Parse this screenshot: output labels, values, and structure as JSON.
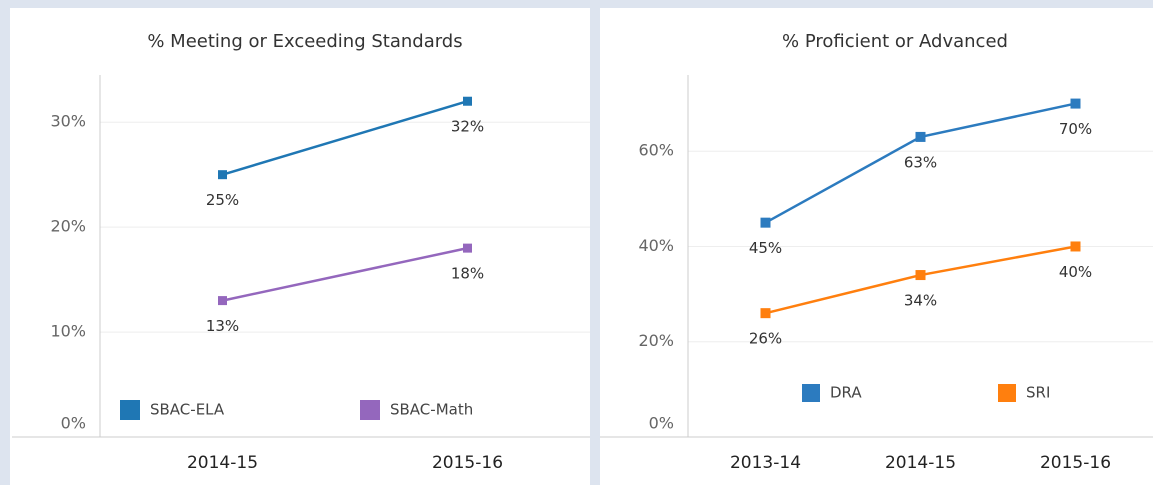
{
  "chart_data": [
    {
      "type": "line",
      "title": "% Meeting or Exceeding Standards",
      "categories": [
        "2014-15",
        "2015-16"
      ],
      "series": [
        {
          "name": "SBAC-ELA",
          "color": "#1f77b4",
          "values": [
            25,
            32
          ],
          "value_labels": [
            "25%",
            "32%"
          ]
        },
        {
          "name": "SBAC-Math",
          "color": "#9467bd",
          "values": [
            13,
            18
          ],
          "value_labels": [
            "13%",
            "18%"
          ]
        }
      ],
      "ylim": [
        0,
        34.5
      ],
      "yticks": [
        {
          "value": 0,
          "label": "0%"
        },
        {
          "value": 10,
          "label": "10%"
        },
        {
          "value": 20,
          "label": "20%"
        },
        {
          "value": 30,
          "label": "30%"
        }
      ],
      "grid": true,
      "legend": "bottom"
    },
    {
      "type": "line",
      "title": "% Proficient or Advanced",
      "categories": [
        "2013-14",
        "2014-15",
        "2015-16"
      ],
      "series": [
        {
          "name": "DRA",
          "color": "#2c7bbf",
          "values": [
            45,
            63,
            70
          ],
          "value_labels": [
            "45%",
            "63%",
            "70%"
          ]
        },
        {
          "name": "SRI",
          "color": "#ff7f0e",
          "values": [
            26,
            34,
            40
          ],
          "value_labels": [
            "26%",
            "34%",
            "40%"
          ]
        }
      ],
      "ylim": [
        0,
        76
      ],
      "yticks": [
        {
          "value": 0,
          "label": "0%"
        },
        {
          "value": 20,
          "label": "20%"
        },
        {
          "value": 40,
          "label": "40%"
        },
        {
          "value": 60,
          "label": "60%"
        }
      ],
      "grid": true,
      "legend": "bottom"
    }
  ]
}
